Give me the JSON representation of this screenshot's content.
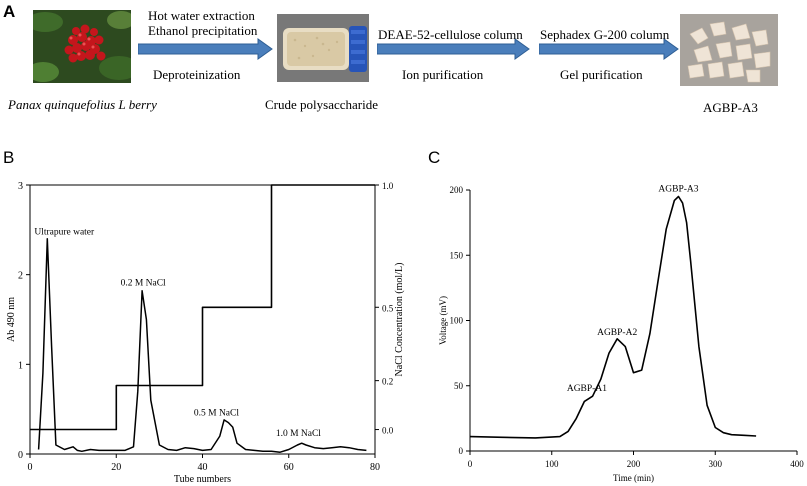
{
  "panel_a": {
    "letter": "A",
    "step1_line1": "Hot water extraction",
    "step1_line2": "Ethanol precipitation",
    "step1_below": "Deproteinization",
    "step2_above": "DEAE-52-cellulose column",
    "step2_below": "Ion purification",
    "step3_above": "Sephadex G-200 column",
    "step3_below": "Gel purification",
    "caption_berry": "Panax quinquefolius L berry",
    "caption_crude": "Crude polysaccharide",
    "caption_final": "AGBP-A3",
    "arrow_color": "#4a7ebb"
  },
  "chart_data": [
    {
      "type": "line",
      "panel_letter": "B",
      "xlabel": "Tube numbers",
      "ylabel": "Ab 490 nm",
      "y2label": "NaCl Concentration (mol/L)",
      "xlim": [
        0,
        80
      ],
      "ylim": [
        0,
        3
      ],
      "y2lim": [
        -0.1,
        1.0
      ],
      "x_ticks": [
        0,
        20,
        40,
        60,
        80
      ],
      "y_ticks": [
        0,
        1,
        2,
        3
      ],
      "y2_ticks": [
        0.0,
        0.2,
        0.5,
        1.0
      ],
      "y2_tick_labels": [
        "0.0",
        "0.2",
        "0.5",
        "1.0"
      ],
      "series": [
        {
          "axis": "left",
          "x": [
            2,
            3,
            4,
            5,
            6,
            8,
            10,
            11,
            12,
            14,
            16,
            18,
            20,
            22,
            24,
            25,
            26,
            27,
            28,
            30,
            32,
            34,
            36,
            38,
            40,
            42,
            44,
            45,
            46,
            47,
            48,
            50,
            52,
            54,
            56,
            58,
            60,
            62,
            63,
            64,
            66,
            68,
            70,
            72,
            74,
            76,
            78
          ],
          "y": [
            0.05,
            0.9,
            2.4,
            1.2,
            0.1,
            0.05,
            0.08,
            0.04,
            0.03,
            0.05,
            0.04,
            0.04,
            0.04,
            0.04,
            0.08,
            0.7,
            1.82,
            1.5,
            0.6,
            0.1,
            0.05,
            0.04,
            0.07,
            0.06,
            0.04,
            0.05,
            0.2,
            0.38,
            0.35,
            0.3,
            0.12,
            0.05,
            0.04,
            0.03,
            0.03,
            0.02,
            0.05,
            0.1,
            0.12,
            0.1,
            0.07,
            0.06,
            0.07,
            0.08,
            0.07,
            0.05,
            0.04
          ]
        },
        {
          "axis": "right",
          "x": [
            0,
            20,
            20,
            40,
            40,
            56,
            56,
            80
          ],
          "y": [
            0.0,
            0.0,
            0.18,
            0.18,
            0.5,
            0.5,
            1.0,
            1.0
          ]
        }
      ],
      "annotations": [
        {
          "text": "Ultrapure water",
          "x": 1,
          "y": 2.45
        },
        {
          "text": "0.2 M NaCl",
          "x": 21,
          "y": 1.88
        },
        {
          "text": "0.5 M NaCl",
          "x": 38,
          "y": 0.43
        },
        {
          "text": "1.0 M NaCl",
          "x": 57,
          "y": 0.2
        }
      ]
    },
    {
      "type": "line",
      "panel_letter": "C",
      "xlabel": "Time (min)",
      "ylabel": "Voltage (mV)",
      "xlim": [
        0,
        400
      ],
      "ylim": [
        0,
        200
      ],
      "x_ticks": [
        0,
        100,
        200,
        300,
        400
      ],
      "y_ticks": [
        0,
        50,
        100,
        150,
        200
      ],
      "series": [
        {
          "axis": "left",
          "x": [
            0,
            40,
            80,
            110,
            120,
            130,
            140,
            150,
            160,
            170,
            180,
            190,
            200,
            210,
            220,
            230,
            240,
            250,
            255,
            260,
            265,
            270,
            280,
            290,
            300,
            310,
            320,
            335,
            350
          ],
          "y": [
            11,
            10.5,
            10,
            11,
            15,
            25,
            38,
            42,
            55,
            75,
            86,
            80,
            60,
            62,
            90,
            130,
            170,
            192,
            195,
            190,
            175,
            145,
            80,
            35,
            18,
            14,
            12.5,
            12,
            11.5
          ]
        }
      ],
      "annotations": [
        {
          "text": "AGBP-A1",
          "x": 143,
          "y": 46
        },
        {
          "text": "AGBP-A2",
          "x": 180,
          "y": 89
        },
        {
          "text": "AGBP-A3",
          "x": 255,
          "y": 199
        }
      ]
    }
  ]
}
